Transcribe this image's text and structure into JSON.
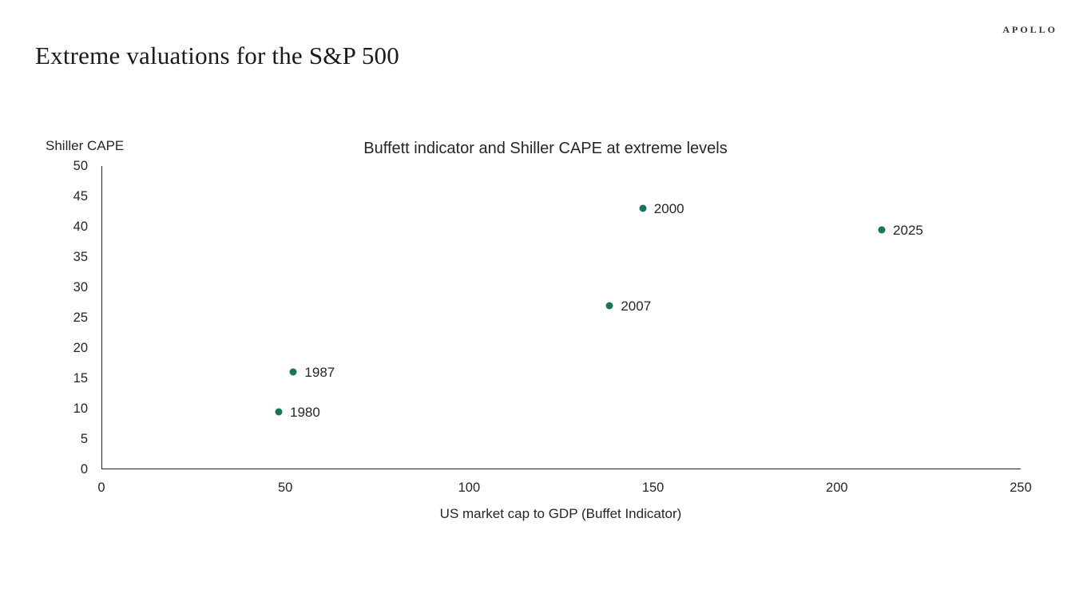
{
  "header": {
    "title": "Extreme valuations for the S&P 500",
    "logo": "APOLLO"
  },
  "colors": {
    "point": "#17735F",
    "axis": "#262626",
    "text": "#222222"
  },
  "chart_data": {
    "type": "scatter",
    "title": "Buffett indicator and Shiller CAPE at extreme levels",
    "xlabel": "US market cap to GDP (Buffet Indicator)",
    "ylabel": "Shiller CAPE",
    "xlim": [
      0,
      250
    ],
    "ylim": [
      0,
      50
    ],
    "x_ticks": [
      0,
      50,
      100,
      150,
      200,
      250
    ],
    "y_ticks": [
      0,
      5,
      10,
      15,
      20,
      25,
      30,
      35,
      40,
      45,
      50
    ],
    "grid": false,
    "legend": "none",
    "points": [
      {
        "label": "1980",
        "x": 48,
        "y": 9.5
      },
      {
        "label": "1987",
        "x": 52,
        "y": 16
      },
      {
        "label": "2007",
        "x": 138,
        "y": 27
      },
      {
        "label": "2000",
        "x": 147,
        "y": 43
      },
      {
        "label": "2025",
        "x": 212,
        "y": 39.5
      }
    ]
  }
}
